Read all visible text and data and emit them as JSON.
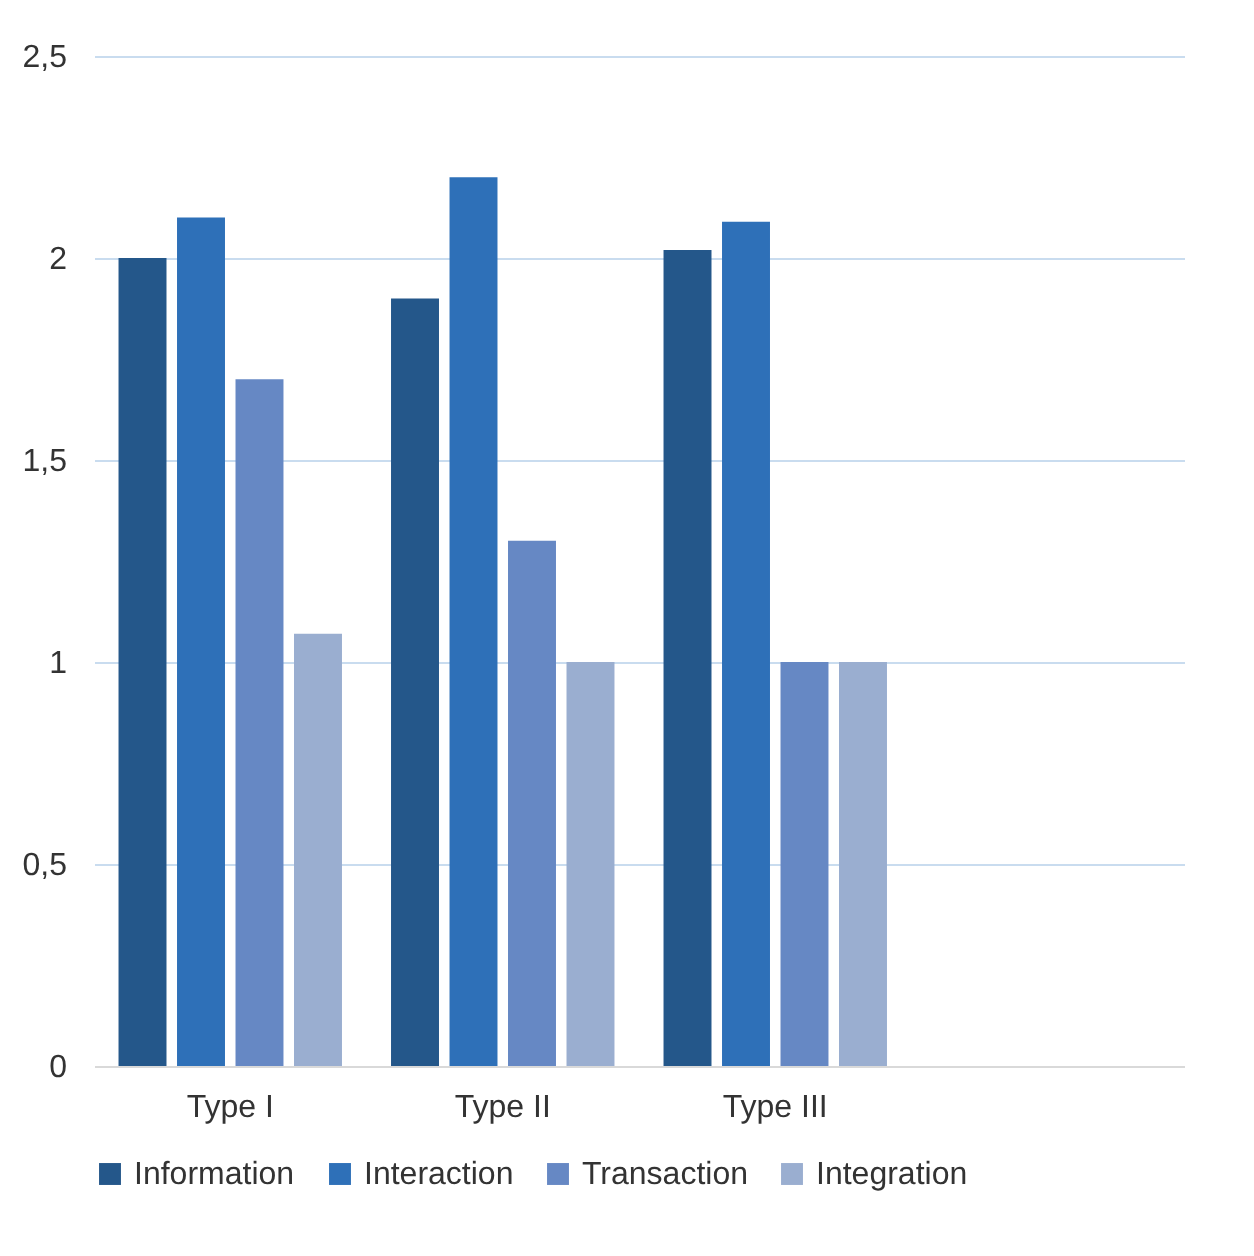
{
  "chart_data": {
    "type": "bar",
    "categories": [
      "Type I",
      "Type II",
      "Type III",
      null
    ],
    "series": [
      {
        "name": "Information",
        "color": "#24578a",
        "values": [
          2.0,
          1.9,
          2.02,
          null
        ]
      },
      {
        "name": "Interaction",
        "color": "#2e70b8",
        "values": [
          2.1,
          2.2,
          2.09,
          null
        ]
      },
      {
        "name": "Transaction",
        "color": "#6688c4",
        "values": [
          1.7,
          1.3,
          1.0,
          null
        ]
      },
      {
        "name": "Integration",
        "color": "#9aaed0",
        "values": [
          1.07,
          1.0,
          1.0,
          null
        ]
      }
    ],
    "ylim": [
      0,
      2.5
    ],
    "yticks": [
      0,
      {
        "value": 0.5,
        "label": "0,5"
      },
      1,
      {
        "value": 1.5,
        "label": "1,5"
      },
      2,
      {
        "value": 2.5,
        "label": "2,5"
      }
    ],
    "grid": "y",
    "legend": "bottom"
  }
}
